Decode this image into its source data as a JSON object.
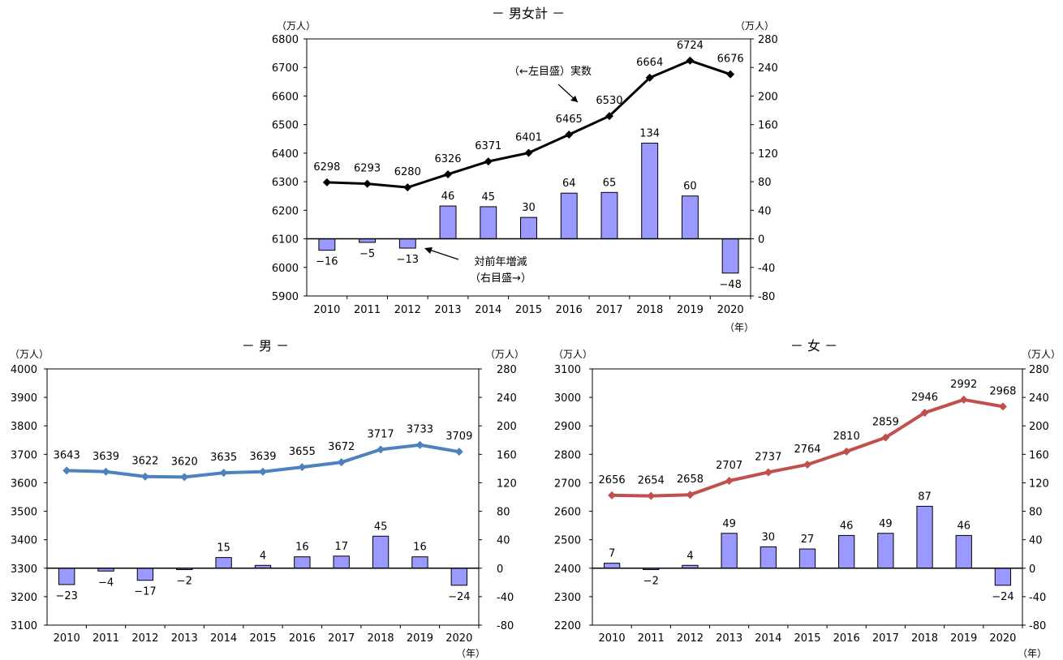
{
  "chart_data": [
    {
      "type": "bar+line",
      "title": "－ 男女計 －",
      "left_unit": "（万人）",
      "right_unit": "（万人）",
      "x_unit": "（年）",
      "categories": [
        "2010",
        "2011",
        "2012",
        "2013",
        "2014",
        "2015",
        "2016",
        "2017",
        "2018",
        "2019",
        "2020"
      ],
      "line_series": {
        "axis": "left",
        "color": "#000000",
        "values": [
          6298,
          6293,
          6280,
          6326,
          6371,
          6401,
          6465,
          6530,
          6664,
          6724,
          6676
        ]
      },
      "bar_series": {
        "axis": "right",
        "color": "#9999ff",
        "values": [
          -16,
          -5,
          -13,
          46,
          45,
          30,
          64,
          65,
          134,
          60,
          -48
        ]
      },
      "left_ylim": [
        5900,
        6800
      ],
      "left_ticks": [
        5900,
        6000,
        6100,
        6200,
        6300,
        6400,
        6500,
        6600,
        6700,
        6800
      ],
      "right_ylim": [
        -80,
        280
      ],
      "right_ticks": [
        -80,
        -40,
        0,
        40,
        80,
        120,
        160,
        200,
        240,
        280
      ],
      "annotations": [
        "（←左目盛）実数",
        "対前年増減",
        "（右目盛→）"
      ]
    },
    {
      "type": "bar+line",
      "title": "－ 男 －",
      "left_unit": "（万人）",
      "right_unit": "（万人）",
      "x_unit": "（年）",
      "categories": [
        "2010",
        "2011",
        "2012",
        "2013",
        "2014",
        "2015",
        "2016",
        "2017",
        "2018",
        "2019",
        "2020"
      ],
      "line_series": {
        "axis": "left",
        "color": "#4f81bd",
        "values": [
          3643,
          3639,
          3622,
          3620,
          3635,
          3639,
          3655,
          3672,
          3717,
          3733,
          3709
        ]
      },
      "bar_series": {
        "axis": "right",
        "color": "#9999ff",
        "values": [
          -23,
          -4,
          -17,
          -2,
          15,
          4,
          16,
          17,
          45,
          16,
          -24
        ]
      },
      "left_ylim": [
        3100,
        4000
      ],
      "left_ticks": [
        3100,
        3200,
        3300,
        3400,
        3500,
        3600,
        3700,
        3800,
        3900,
        4000
      ],
      "right_ylim": [
        -80,
        280
      ],
      "right_ticks": [
        -80,
        -40,
        0,
        40,
        80,
        120,
        160,
        200,
        240,
        280
      ],
      "annotations": []
    },
    {
      "type": "bar+line",
      "title": "－ 女 －",
      "left_unit": "（万人）",
      "right_unit": "（万人）",
      "x_unit": "（年）",
      "categories": [
        "2010",
        "2011",
        "2012",
        "2013",
        "2014",
        "2015",
        "2016",
        "2017",
        "2018",
        "2019",
        "2020"
      ],
      "line_series": {
        "axis": "left",
        "color": "#c0504d",
        "values": [
          2656,
          2654,
          2658,
          2707,
          2737,
          2764,
          2810,
          2859,
          2946,
          2992,
          2968
        ]
      },
      "bar_series": {
        "axis": "right",
        "color": "#9999ff",
        "values": [
          7,
          -2,
          4,
          49,
          30,
          27,
          46,
          49,
          87,
          46,
          -24
        ]
      },
      "left_ylim": [
        2200,
        3100
      ],
      "left_ticks": [
        2200,
        2300,
        2400,
        2500,
        2600,
        2700,
        2800,
        2900,
        3000,
        3100
      ],
      "right_ylim": [
        -80,
        280
      ],
      "right_ticks": [
        -80,
        -40,
        0,
        40,
        80,
        120,
        160,
        200,
        240,
        280
      ],
      "annotations": []
    }
  ]
}
